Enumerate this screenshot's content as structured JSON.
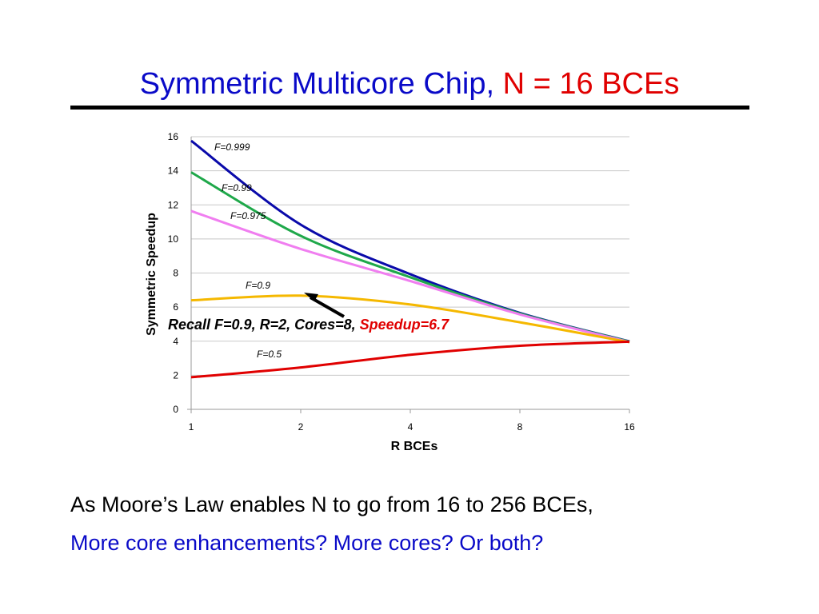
{
  "slide": {
    "title_main": "Symmetric Multicore Chip, ",
    "title_accent": "N = 16 BCEs",
    "body_line1": "As Moore’s Law enables N to go from 16 to 256 BCEs,",
    "body_line2": "More core enhancements? More cores? Or both?",
    "colors": {
      "title": "#0a0ac8",
      "accent": "#e00000",
      "rule": "#000000"
    }
  },
  "chart_data": {
    "type": "line",
    "title": "",
    "xlabel": "R BCEs",
    "ylabel": "Symmetric Speedup",
    "x_scale": "log2",
    "x": [
      1,
      2,
      4,
      8,
      16
    ],
    "x_ticks": [
      "1",
      "2",
      "4",
      "8",
      "16"
    ],
    "ylim": [
      0,
      16
    ],
    "y_ticks": [
      "0",
      "2",
      "4",
      "6",
      "8",
      "10",
      "12",
      "14",
      "16"
    ],
    "grid": "horizontal",
    "legend": "none",
    "series": [
      {
        "name": "F=0.999",
        "color": "#0a0aaa",
        "values": [
          15.76,
          10.84,
          7.93,
          5.66,
          3.99
        ]
      },
      {
        "name": "F=0.99",
        "color": "#1fa84a",
        "values": [
          13.91,
          10.18,
          7.75,
          5.62,
          3.97
        ]
      },
      {
        "name": "F=0.975",
        "color": "#f07ef0",
        "values": [
          11.64,
          9.41,
          7.53,
          5.57,
          3.94
        ]
      },
      {
        "name": "F=0.9",
        "color": "#f5b800",
        "values": [
          6.4,
          6.67,
          6.15,
          5.11,
          3.94
        ]
      },
      {
        "name": "F=0.5",
        "color": "#e00000",
        "values": [
          1.88,
          2.46,
          3.2,
          3.73,
          3.97
        ]
      }
    ],
    "annotations": [
      {
        "text": "Recall F=0.9, R=2, Cores=8, ",
        "highlight": "Speedup=6.7",
        "points_to": {
          "x": 2,
          "y": 6.67
        }
      }
    ]
  }
}
